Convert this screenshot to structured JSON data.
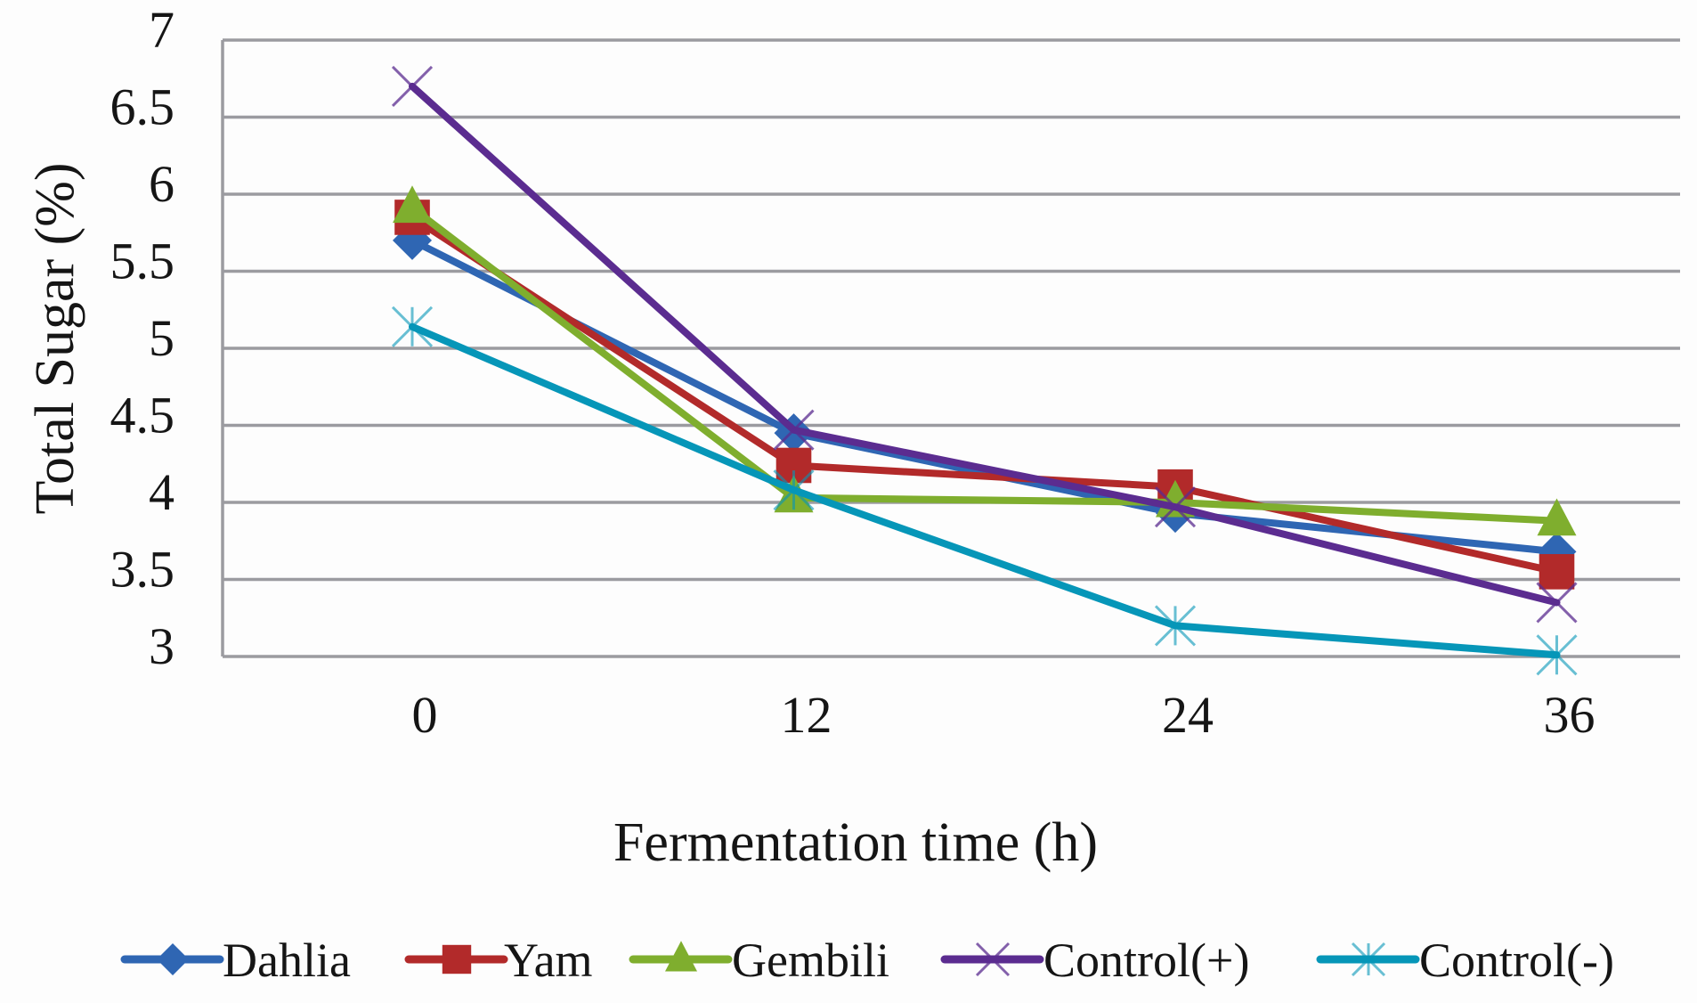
{
  "chart_data": {
    "type": "line",
    "title": "",
    "xlabel": "Fermentation time (h)",
    "ylabel": "Total Sugar (%)",
    "categories": [
      "0",
      "12",
      "24",
      "36"
    ],
    "ylim": [
      3,
      7
    ],
    "yticks": [
      "3",
      "3.5",
      "4",
      "4.5",
      "5",
      "5.5",
      "6",
      "6.5",
      "7"
    ],
    "ytick_values": [
      3,
      3.5,
      4,
      4.5,
      5,
      5.5,
      6,
      6.5,
      7
    ],
    "grid": true,
    "legend_position": "bottom",
    "series": [
      {
        "name": "Dahlia",
        "color": "#2f66b3",
        "marker": "diamond",
        "values": [
          5.7,
          4.45,
          3.93,
          3.68
        ]
      },
      {
        "name": "Yam",
        "color": "#b22a2a",
        "marker": "square",
        "values": [
          5.85,
          4.24,
          4.1,
          3.55
        ]
      },
      {
        "name": "Gembili",
        "color": "#7fae2e",
        "marker": "triangle",
        "values": [
          5.91,
          4.03,
          4.0,
          3.88
        ]
      },
      {
        "name": "Control(+)",
        "color": "#5b2c90",
        "marker": "x",
        "values": [
          6.7,
          4.47,
          3.97,
          3.35
        ]
      },
      {
        "name": "Control(-)",
        "color": "#0696b8",
        "marker": "star",
        "values": [
          5.14,
          4.08,
          3.2,
          3.01
        ]
      }
    ]
  }
}
